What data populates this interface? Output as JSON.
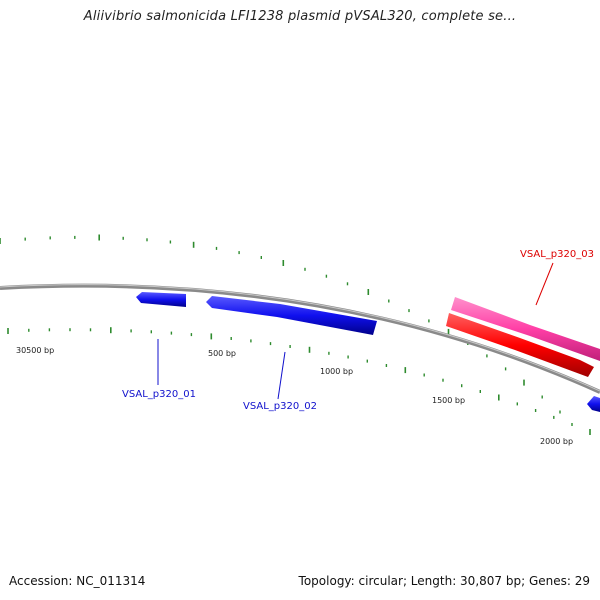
{
  "title": "Aliivibrio salmonicida LFI1238 plasmid pVSAL320, complete se...",
  "footer": {
    "accession": "Accession: NC_011314",
    "summary": "Topology: circular; Length: 30,807 bp; Genes: 29"
  },
  "colors": {
    "backbone": "#8a8a8a",
    "ticks": "#2e8b2e",
    "gene_blue": "#1010ee",
    "gene_red": "#ff0000",
    "gene_pink": "#ff3fa6",
    "label_blue": "#1010cc",
    "label_red": "#dd0000"
  },
  "position_labels": [
    "30500 bp",
    "500 bp",
    "1000 bp",
    "1500 bp",
    "2000 bp"
  ],
  "genes": [
    {
      "label": "VSAL_p320_01",
      "color": "blue"
    },
    {
      "label": "VSAL_p320_02",
      "color": "blue"
    },
    {
      "label": "VSAL_p320_03",
      "color": "red"
    }
  ]
}
